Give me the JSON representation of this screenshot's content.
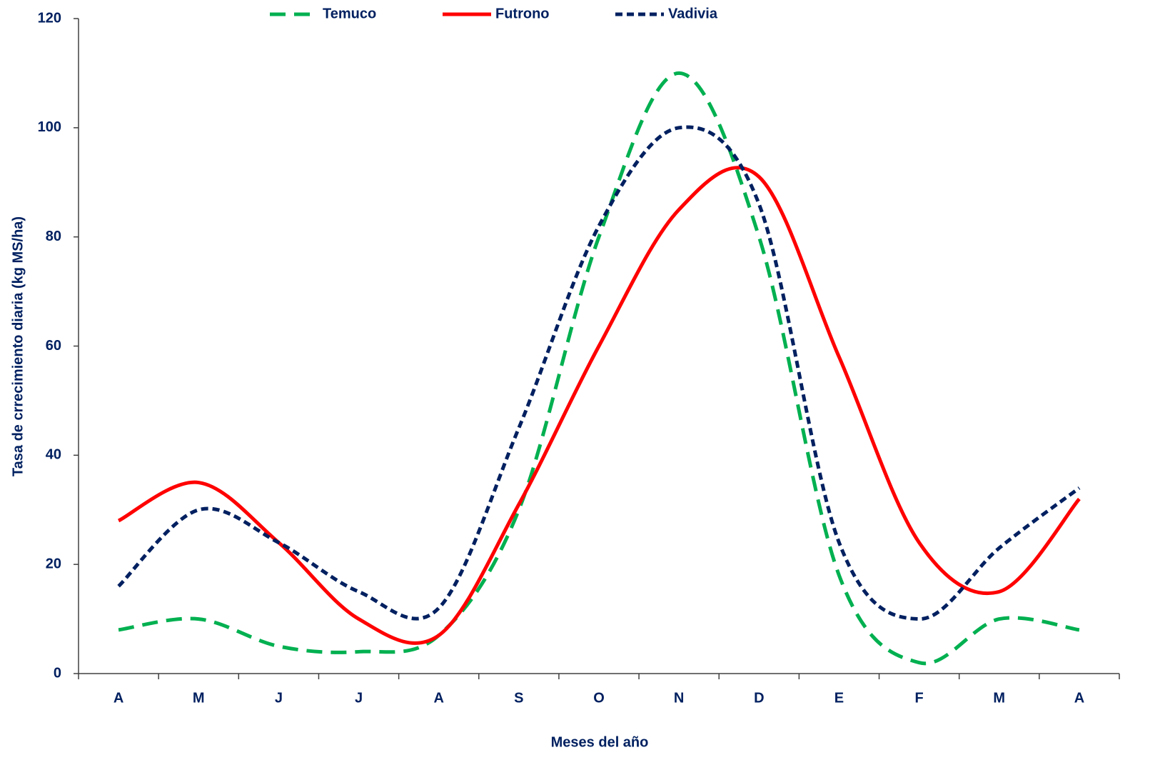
{
  "chart_data": {
    "type": "line",
    "smooth": true,
    "x_label": "Meses del año",
    "y_label": "Tasa de crrecimiento diaria (kg MS/ha)",
    "categories": [
      "A",
      "M",
      "J",
      "J",
      "A",
      "S",
      "O",
      "N",
      "D",
      "E",
      "F",
      "M",
      "A"
    ],
    "series": [
      {
        "name": "Temuco",
        "color": "#00b050",
        "dash": "22 12",
        "values": [
          8,
          10,
          5,
          4,
          7,
          30,
          80,
          110,
          80,
          18,
          2,
          10,
          8
        ]
      },
      {
        "name": "Futrono",
        "color": "#ff0000",
        "dash": "none",
        "values": [
          28,
          35,
          24,
          10,
          7,
          31,
          60,
          85,
          91,
          58,
          24,
          15,
          32
        ]
      },
      {
        "name": "Vadivia",
        "color": "#002060",
        "dash": "10 6",
        "values": [
          16,
          30,
          24,
          15,
          12,
          45,
          82,
          100,
          86,
          24,
          10,
          23,
          34
        ]
      }
    ],
    "ylim": [
      0,
      120
    ],
    "yticks": [
      0,
      20,
      40,
      60,
      80,
      100,
      120
    ],
    "grid": false,
    "legend": "top"
  }
}
